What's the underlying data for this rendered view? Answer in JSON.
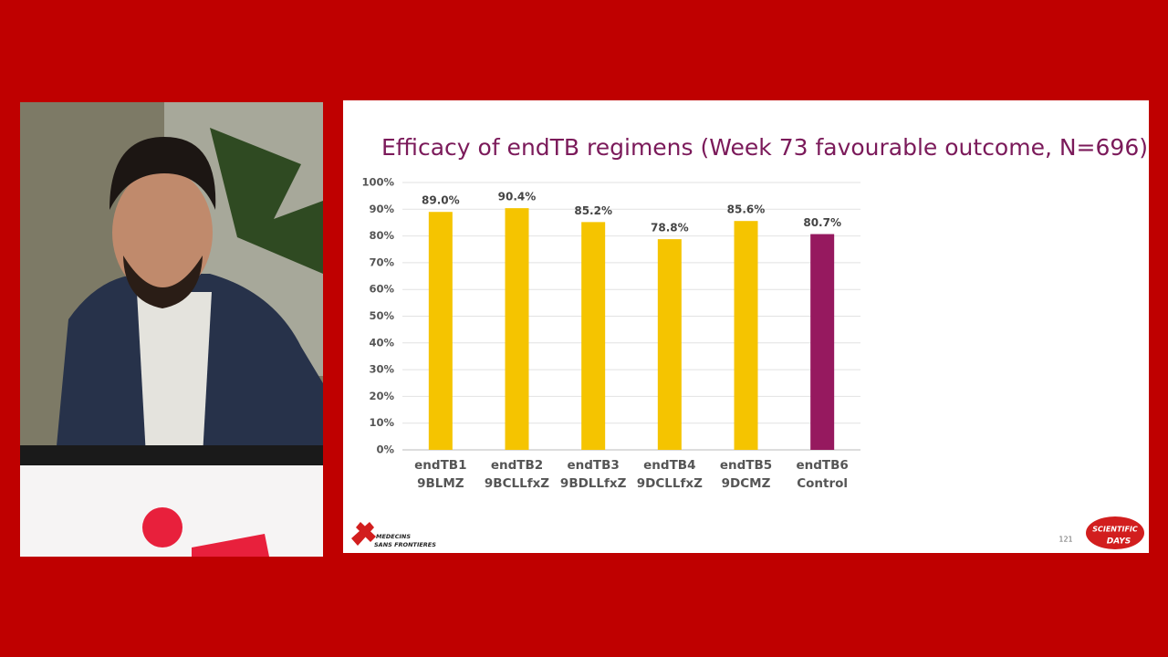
{
  "chart_data": {
    "type": "bar",
    "title": "Efficacy of endTB regimens (Week 73 favourable outcome, N=696)",
    "categories": [
      [
        "endTB1",
        "9BLMZ"
      ],
      [
        "endTB2",
        "9BCLLfxZ"
      ],
      [
        "endTB3",
        "9BDLLfxZ"
      ],
      [
        "endTB4",
        "9DCLLfxZ"
      ],
      [
        "endTB5",
        "9DCMZ"
      ],
      [
        "endTB6",
        "Control"
      ]
    ],
    "values": [
      89.0,
      90.4,
      85.2,
      78.8,
      85.6,
      80.7
    ],
    "value_labels": [
      "89.0%",
      "90.4%",
      "85.2%",
      "78.8%",
      "85.6%",
      "80.7%"
    ],
    "colors": [
      "#f5c400",
      "#f5c400",
      "#f5c400",
      "#f5c400",
      "#f5c400",
      "#96195f"
    ],
    "ylim": [
      0,
      100
    ],
    "yticks": [
      {
        "value": 0,
        "label": "0%"
      },
      {
        "value": 10,
        "label": "10%"
      },
      {
        "value": 20,
        "label": "20%"
      },
      {
        "value": 30,
        "label": "30%"
      },
      {
        "value": 40,
        "label": "40%"
      },
      {
        "value": 50,
        "label": "50%"
      },
      {
        "value": 60,
        "label": "60%"
      },
      {
        "value": 70,
        "label": "70%"
      },
      {
        "value": 80,
        "label": "80%"
      },
      {
        "value": 90,
        "label": "90%"
      },
      {
        "value": 100,
        "label": "100%"
      }
    ],
    "grid": true
  },
  "slide": {
    "number": "121",
    "logo": [
      "MEDECINS",
      "SANS FRONTIERES"
    ],
    "badge": [
      "SCIENTIFIC",
      "DAYS"
    ]
  }
}
